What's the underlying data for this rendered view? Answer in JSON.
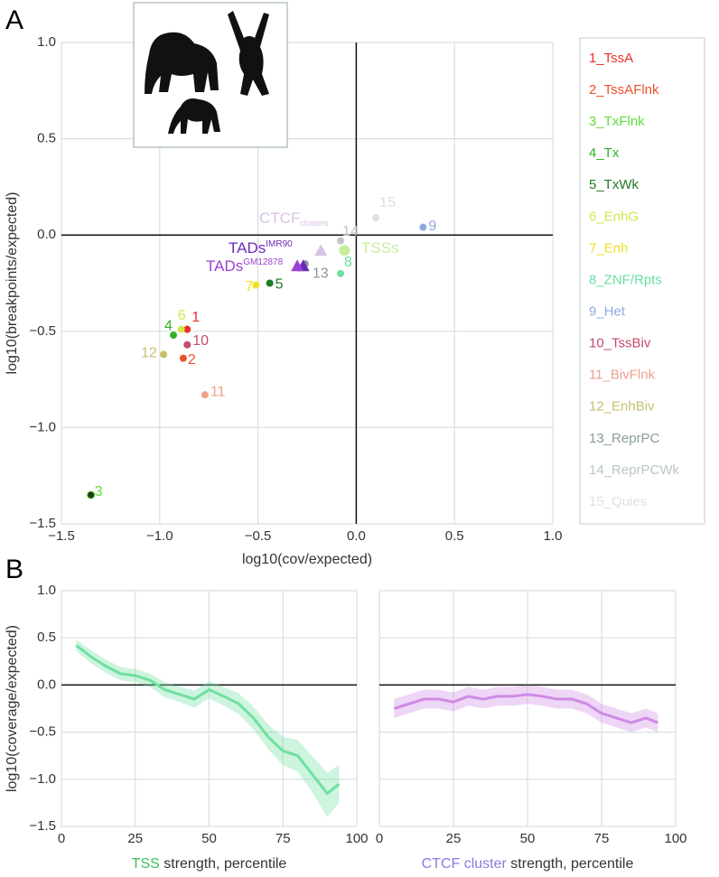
{
  "panel_labels": [
    "A",
    "B"
  ],
  "chart_data": [
    {
      "type": "scatter",
      "xlabel": "log10(cov/expected)",
      "ylabel": "log10(breakpoints/expected)",
      "xlim": [
        -1.5,
        1.0
      ],
      "ylim": [
        -1.5,
        1.0
      ],
      "xticks": [
        {
          "value": -1.5,
          "label": "−1.5"
        },
        {
          "value": -1.0,
          "label": "−1.0"
        },
        {
          "value": -0.5,
          "label": "−0.5"
        },
        {
          "value": 0.0,
          "label": "0.0"
        },
        {
          "value": 0.5,
          "label": "0.5"
        },
        {
          "value": 1.0,
          "label": "1.0"
        }
      ],
      "yticks": [
        {
          "value": -1.5,
          "label": "−1.5"
        },
        {
          "value": -1.0,
          "label": "−1.0"
        },
        {
          "value": -0.5,
          "label": "−0.5"
        },
        {
          "value": 0.0,
          "label": "0.0"
        },
        {
          "value": 0.5,
          "label": "0.5"
        },
        {
          "value": 1.0,
          "label": "1.0"
        }
      ],
      "grid": true,
      "zero_lines": true,
      "legend": "right",
      "series": [
        {
          "name": "1_TssA",
          "label": "1",
          "color": "#e8302a",
          "x": [
            -0.86
          ],
          "values": [
            -0.49
          ]
        },
        {
          "name": "2_TssAFlnk",
          "label": "2",
          "color": "#eb5128",
          "x": [
            -0.88
          ],
          "values": [
            -0.64
          ]
        },
        {
          "name": "3_TxFlnk",
          "label": "3",
          "color": "#5fdc3a",
          "x": [
            -1.35
          ],
          "values": [
            -1.35
          ]
        },
        {
          "name": "4_Tx",
          "label": "4",
          "color": "#33b02a",
          "x": [
            -0.93
          ],
          "values": [
            -0.52
          ]
        },
        {
          "name": "5_TxWk",
          "label": "5",
          "color": "#1d7a22",
          "x": [
            -0.44
          ],
          "values": [
            -0.25
          ]
        },
        {
          "name": "6_EnhG",
          "label": "6",
          "color": "#d2e84a",
          "x": [
            -0.89
          ],
          "values": [
            -0.49
          ]
        },
        {
          "name": "7_Enh",
          "label": "7",
          "color": "#f2e024",
          "x": [
            -0.51
          ],
          "values": [
            -0.26
          ]
        },
        {
          "name": "8_ZNF/Rpts",
          "label": "8",
          "color": "#6adfa4",
          "x": [
            -0.08
          ],
          "values": [
            -0.2
          ]
        },
        {
          "name": "9_Het",
          "label": "9",
          "color": "#8ea8e0",
          "x": [
            0.34
          ],
          "values": [
            0.04
          ]
        },
        {
          "name": "10_TssBiv",
          "label": "10",
          "color": "#c24d68",
          "x": [
            -0.86
          ],
          "values": [
            -0.57
          ]
        },
        {
          "name": "11_BivFlnk",
          "label": "11",
          "color": "#eea08e",
          "x": [
            -0.77
          ],
          "values": [
            -0.83
          ]
        },
        {
          "name": "12_EnhBiv",
          "label": "12",
          "color": "#c6bf6e",
          "x": [
            -0.98
          ],
          "values": [
            -0.62
          ]
        },
        {
          "name": "13_ReprPC",
          "label": "13",
          "color": "#8a9a9a",
          "x": [
            -0.26
          ],
          "values": [
            -0.15
          ]
        },
        {
          "name": "14_ReprPCWk",
          "label": "14",
          "color": "#bcc6c6",
          "x": [
            -0.08
          ],
          "values": [
            -0.03
          ]
        },
        {
          "name": "15_Quies",
          "label": "15",
          "color": "#dde1e1",
          "x": [
            0.1
          ],
          "values": [
            0.09
          ]
        }
      ],
      "features": [
        {
          "label": "CTCF",
          "sub": "clusters",
          "shape": "triangle",
          "color": "#d9c2e2",
          "x": -0.18,
          "y": -0.08
        },
        {
          "label": "TSSs",
          "shape": "circle",
          "color": "#c6ee9e",
          "x": -0.06,
          "y": -0.08
        },
        {
          "label": "TADs",
          "sup": "IMR90",
          "shape": "triangle",
          "color": "#6a2ab8",
          "x": -0.27,
          "y": -0.16
        },
        {
          "label": "TADs",
          "sup": "GM12878",
          "shape": "triangle",
          "color": "#9c42d2",
          "x": -0.3,
          "y": -0.16
        }
      ]
    },
    {
      "type": "line",
      "xlabel_parts": [
        {
          "text": "TSS",
          "color": "#3cc060"
        },
        {
          "text": " strength, percentile"
        }
      ],
      "ylabel": "log10(coverage/expected)",
      "xlim": [
        0,
        100
      ],
      "ylim": [
        -1.5,
        1.0
      ],
      "xticks": [
        0,
        25,
        50,
        75,
        100
      ],
      "yticks": [
        {
          "value": -1.5,
          "label": "−1.5"
        },
        {
          "value": -1.0,
          "label": "−1.0"
        },
        {
          "value": -0.5,
          "label": "−0.5"
        },
        {
          "value": 0.0,
          "label": "0.0"
        },
        {
          "value": 0.5,
          "label": "0.5"
        },
        {
          "value": 1.0,
          "label": "1.0"
        }
      ],
      "grid": true,
      "zero_lines": true,
      "x": [
        5,
        10,
        15,
        20,
        25,
        30,
        35,
        40,
        45,
        50,
        55,
        60,
        65,
        70,
        75,
        80,
        85,
        90,
        94
      ],
      "series": [
        {
          "color": "#6fe0a0",
          "values": [
            0.42,
            0.3,
            0.2,
            0.12,
            0.1,
            0.05,
            -0.05,
            -0.1,
            -0.15,
            -0.05,
            -0.12,
            -0.2,
            -0.35,
            -0.55,
            -0.7,
            -0.75,
            -0.95,
            -1.15,
            -1.05
          ],
          "upper": [
            0.48,
            0.37,
            0.27,
            0.19,
            0.17,
            0.12,
            0.03,
            -0.02,
            -0.06,
            0.04,
            -0.02,
            -0.09,
            -0.23,
            -0.42,
            -0.55,
            -0.58,
            -0.76,
            -0.93,
            -0.85
          ],
          "lower": [
            0.36,
            0.23,
            0.13,
            0.05,
            0.03,
            -0.02,
            -0.13,
            -0.18,
            -0.24,
            -0.14,
            -0.22,
            -0.31,
            -0.47,
            -0.68,
            -0.85,
            -0.92,
            -1.14,
            -1.4,
            -1.25
          ]
        }
      ]
    },
    {
      "type": "line",
      "xlabel_parts": [
        {
          "text": "CTCF cluster",
          "color": "#8a7be0"
        },
        {
          "text": " strength, percentile"
        }
      ],
      "xlim": [
        0,
        100
      ],
      "ylim": [
        -1.5,
        1.0
      ],
      "xticks": [
        0,
        25,
        50,
        75,
        100
      ],
      "grid": true,
      "zero_lines": true,
      "x": [
        5,
        10,
        15,
        20,
        25,
        30,
        35,
        40,
        45,
        50,
        55,
        60,
        65,
        70,
        75,
        80,
        85,
        90,
        94
      ],
      "series": [
        {
          "color": "#cf8ae6",
          "values": [
            -0.25,
            -0.2,
            -0.15,
            -0.15,
            -0.18,
            -0.12,
            -0.15,
            -0.12,
            -0.12,
            -0.1,
            -0.12,
            -0.15,
            -0.15,
            -0.2,
            -0.3,
            -0.35,
            -0.4,
            -0.35,
            -0.4
          ],
          "upper": [
            -0.15,
            -0.1,
            -0.05,
            -0.05,
            -0.08,
            -0.02,
            -0.05,
            -0.02,
            -0.02,
            0.0,
            -0.02,
            -0.05,
            -0.05,
            -0.1,
            -0.2,
            -0.25,
            -0.3,
            -0.25,
            -0.3
          ],
          "lower": [
            -0.35,
            -0.3,
            -0.25,
            -0.25,
            -0.28,
            -0.22,
            -0.25,
            -0.22,
            -0.22,
            -0.2,
            -0.22,
            -0.25,
            -0.25,
            -0.3,
            -0.4,
            -0.45,
            -0.5,
            -0.45,
            -0.5
          ]
        }
      ]
    }
  ]
}
